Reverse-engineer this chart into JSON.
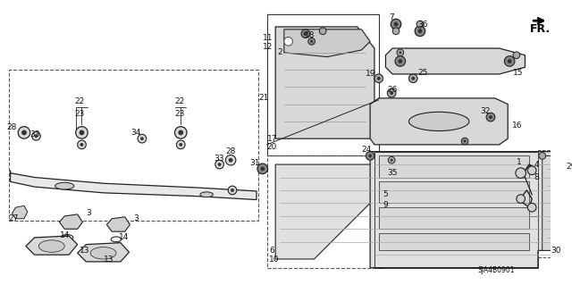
{
  "bg_color": "#ffffff",
  "diagram_code": "SJA4B0901",
  "line_color": "#222222",
  "text_color": "#111111",
  "font_size": 6.5,
  "figsize": [
    6.4,
    3.19
  ],
  "dpi": 100
}
